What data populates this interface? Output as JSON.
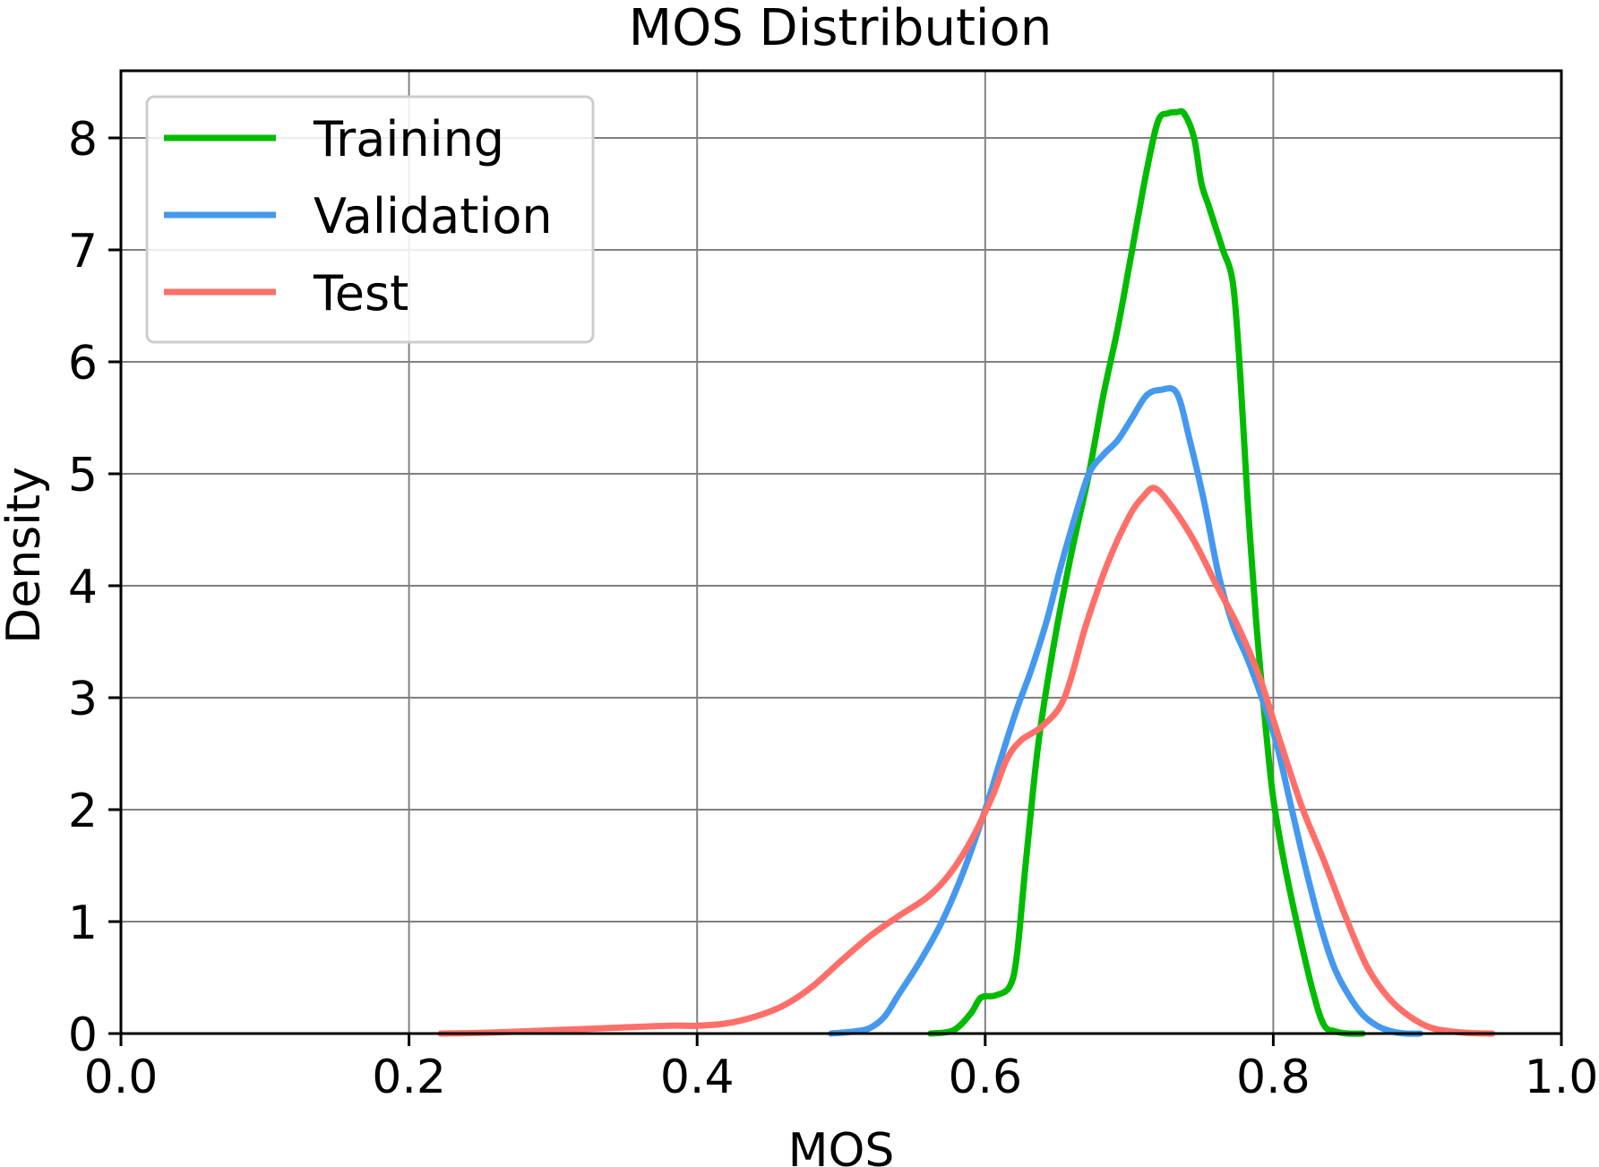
{
  "chart_data": {
    "type": "line",
    "title": "MOS Distribution",
    "xlabel": "MOS",
    "ylabel": "Density",
    "xlim": [
      0.0,
      1.0
    ],
    "ylim": [
      0,
      8.6
    ],
    "xticks": [
      0.0,
      0.2,
      0.4,
      0.6,
      0.8,
      1.0
    ],
    "xtick_labels": [
      "0.0",
      "0.2",
      "0.4",
      "0.6",
      "0.8",
      "1.0"
    ],
    "yticks": [
      0,
      1,
      2,
      3,
      4,
      5,
      6,
      7,
      8
    ],
    "ytick_labels": [
      "0",
      "1",
      "2",
      "3",
      "4",
      "5",
      "6",
      "7",
      "8"
    ],
    "grid": true,
    "legend_position": "top-left",
    "series": [
      {
        "name": "Training",
        "color": "#00bb00",
        "x": [
          0.562,
          0.578,
          0.59,
          0.597,
          0.607,
          0.617,
          0.622,
          0.628,
          0.637,
          0.648,
          0.66,
          0.672,
          0.682,
          0.692,
          0.702,
          0.712,
          0.72,
          0.727,
          0.733,
          0.738,
          0.745,
          0.75,
          0.755,
          0.76,
          0.765,
          0.772,
          0.777,
          0.782,
          0.788,
          0.795,
          0.8,
          0.808,
          0.817,
          0.827,
          0.835,
          0.843,
          0.852,
          0.862
        ],
        "y": [
          0.0,
          0.03,
          0.18,
          0.32,
          0.34,
          0.42,
          0.7,
          1.5,
          2.6,
          3.5,
          4.3,
          5.0,
          5.7,
          6.3,
          7.0,
          7.7,
          8.15,
          8.22,
          8.23,
          8.22,
          8.0,
          7.6,
          7.4,
          7.2,
          7.0,
          6.7,
          5.9,
          4.8,
          3.7,
          2.7,
          2.1,
          1.5,
          0.95,
          0.4,
          0.08,
          0.02,
          0.0,
          0.0
        ]
      },
      {
        "name": "Validation",
        "color": "#4499ee",
        "x": [
          0.493,
          0.51,
          0.52,
          0.53,
          0.54,
          0.555,
          0.57,
          0.585,
          0.6,
          0.612,
          0.622,
          0.632,
          0.643,
          0.652,
          0.662,
          0.672,
          0.682,
          0.692,
          0.702,
          0.712,
          0.722,
          0.733,
          0.742,
          0.752,
          0.762,
          0.772,
          0.782,
          0.792,
          0.802,
          0.812,
          0.822,
          0.832,
          0.842,
          0.852,
          0.862,
          0.872,
          0.882,
          0.892,
          0.902
        ],
        "y": [
          0.0,
          0.02,
          0.05,
          0.15,
          0.35,
          0.65,
          1.0,
          1.45,
          2.0,
          2.5,
          2.9,
          3.25,
          3.7,
          4.15,
          4.6,
          5.0,
          5.17,
          5.3,
          5.5,
          5.7,
          5.75,
          5.72,
          5.3,
          4.75,
          4.1,
          3.65,
          3.35,
          3.0,
          2.6,
          2.05,
          1.5,
          1.0,
          0.6,
          0.35,
          0.17,
          0.07,
          0.02,
          0.0,
          0.0
        ]
      },
      {
        "name": "Test",
        "color": "#ff6f69",
        "x": [
          0.222,
          0.26,
          0.3,
          0.34,
          0.38,
          0.4,
          0.42,
          0.44,
          0.46,
          0.48,
          0.5,
          0.52,
          0.54,
          0.56,
          0.575,
          0.59,
          0.605,
          0.615,
          0.625,
          0.64,
          0.655,
          0.67,
          0.685,
          0.7,
          0.71,
          0.718,
          0.73,
          0.745,
          0.76,
          0.775,
          0.79,
          0.805,
          0.82,
          0.835,
          0.85,
          0.865,
          0.88,
          0.895,
          0.91,
          0.93,
          0.952
        ],
        "y": [
          0.0,
          0.01,
          0.03,
          0.05,
          0.07,
          0.07,
          0.09,
          0.15,
          0.25,
          0.42,
          0.65,
          0.87,
          1.05,
          1.22,
          1.42,
          1.72,
          2.12,
          2.45,
          2.62,
          2.75,
          3.0,
          3.65,
          4.2,
          4.62,
          4.8,
          4.87,
          4.7,
          4.4,
          4.02,
          3.65,
          3.2,
          2.6,
          2.02,
          1.55,
          1.05,
          0.6,
          0.32,
          0.15,
          0.05,
          0.01,
          0.0
        ]
      }
    ]
  }
}
